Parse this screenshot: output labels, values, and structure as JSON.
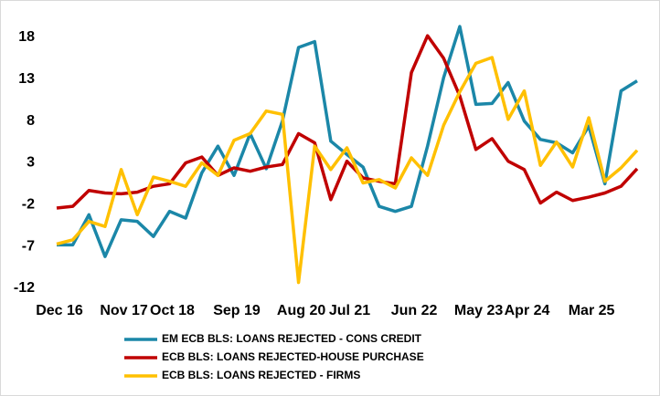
{
  "chart_data": {
    "type": "line",
    "categories": [
      "Dec 16",
      null,
      null,
      null,
      "Nov 17",
      null,
      null,
      "Oct 18",
      null,
      null,
      null,
      "Sep 19",
      null,
      null,
      null,
      "Aug 20",
      null,
      null,
      "Jul 21",
      null,
      null,
      null,
      "Jun 22",
      null,
      null,
      null,
      "May 23",
      null,
      null,
      "Apr 24",
      null,
      null,
      null,
      "Mar 25",
      null,
      null,
      null
    ],
    "series": [
      {
        "name": "EM ECB BLS: LOANS REJECTED - CONS CREDIT",
        "color": "#1b87a8",
        "values": [
          -6.8,
          -6.8,
          -3.2,
          -8.2,
          -3.8,
          -4,
          -5.8,
          -2.8,
          -3.6,
          1.8,
          5,
          1.5,
          6.5,
          2.3,
          8,
          16.8,
          17.5,
          5.6,
          4,
          2.5,
          -2.2,
          -2.8,
          -2.2,
          5,
          13.2,
          19.3,
          10,
          10.1,
          12.6,
          8,
          5.8,
          5.4,
          4.2,
          7.4,
          0.5,
          11.6,
          12.8
        ]
      },
      {
        "name": "ECB BLS: LOANS REJECTED-HOUSE PURCHASE",
        "color": "#c00000",
        "values": [
          -2.4,
          -2.2,
          -0.3,
          -0.6,
          -0.7,
          -0.5,
          0.2,
          0.5,
          3,
          3.7,
          1.5,
          2.4,
          2,
          2.5,
          2.8,
          6.5,
          5.4,
          -1.4,
          3.2,
          1.2,
          0.8,
          0.5,
          13.8,
          18.2,
          15.5,
          11,
          4.6,
          5.9,
          3.2,
          2.2,
          -1.8,
          -0.5,
          -1.5,
          -1.1,
          -0.6,
          0.2,
          2.3
        ]
      },
      {
        "name": "ECB BLS: LOANS REJECTED - FIRMS",
        "color": "#ffc000",
        "values": [
          -6.7,
          -6.2,
          -4,
          -4.6,
          2.2,
          -3.2,
          1.3,
          0.8,
          0.2,
          3,
          1.5,
          5.7,
          6.5,
          9.2,
          8.8,
          -11.3,
          5,
          2.2,
          4.8,
          0.6,
          1,
          0,
          3.6,
          1.5,
          7.5,
          11.5,
          14.9,
          15.6,
          8.2,
          11.6,
          2.7,
          5.5,
          2.5,
          8.4,
          0.8,
          2.4,
          4.5
        ]
      }
    ],
    "ylim": [
      -12,
      18
    ],
    "yticks": [
      -12,
      -7,
      -2,
      3,
      8,
      13,
      18
    ]
  }
}
